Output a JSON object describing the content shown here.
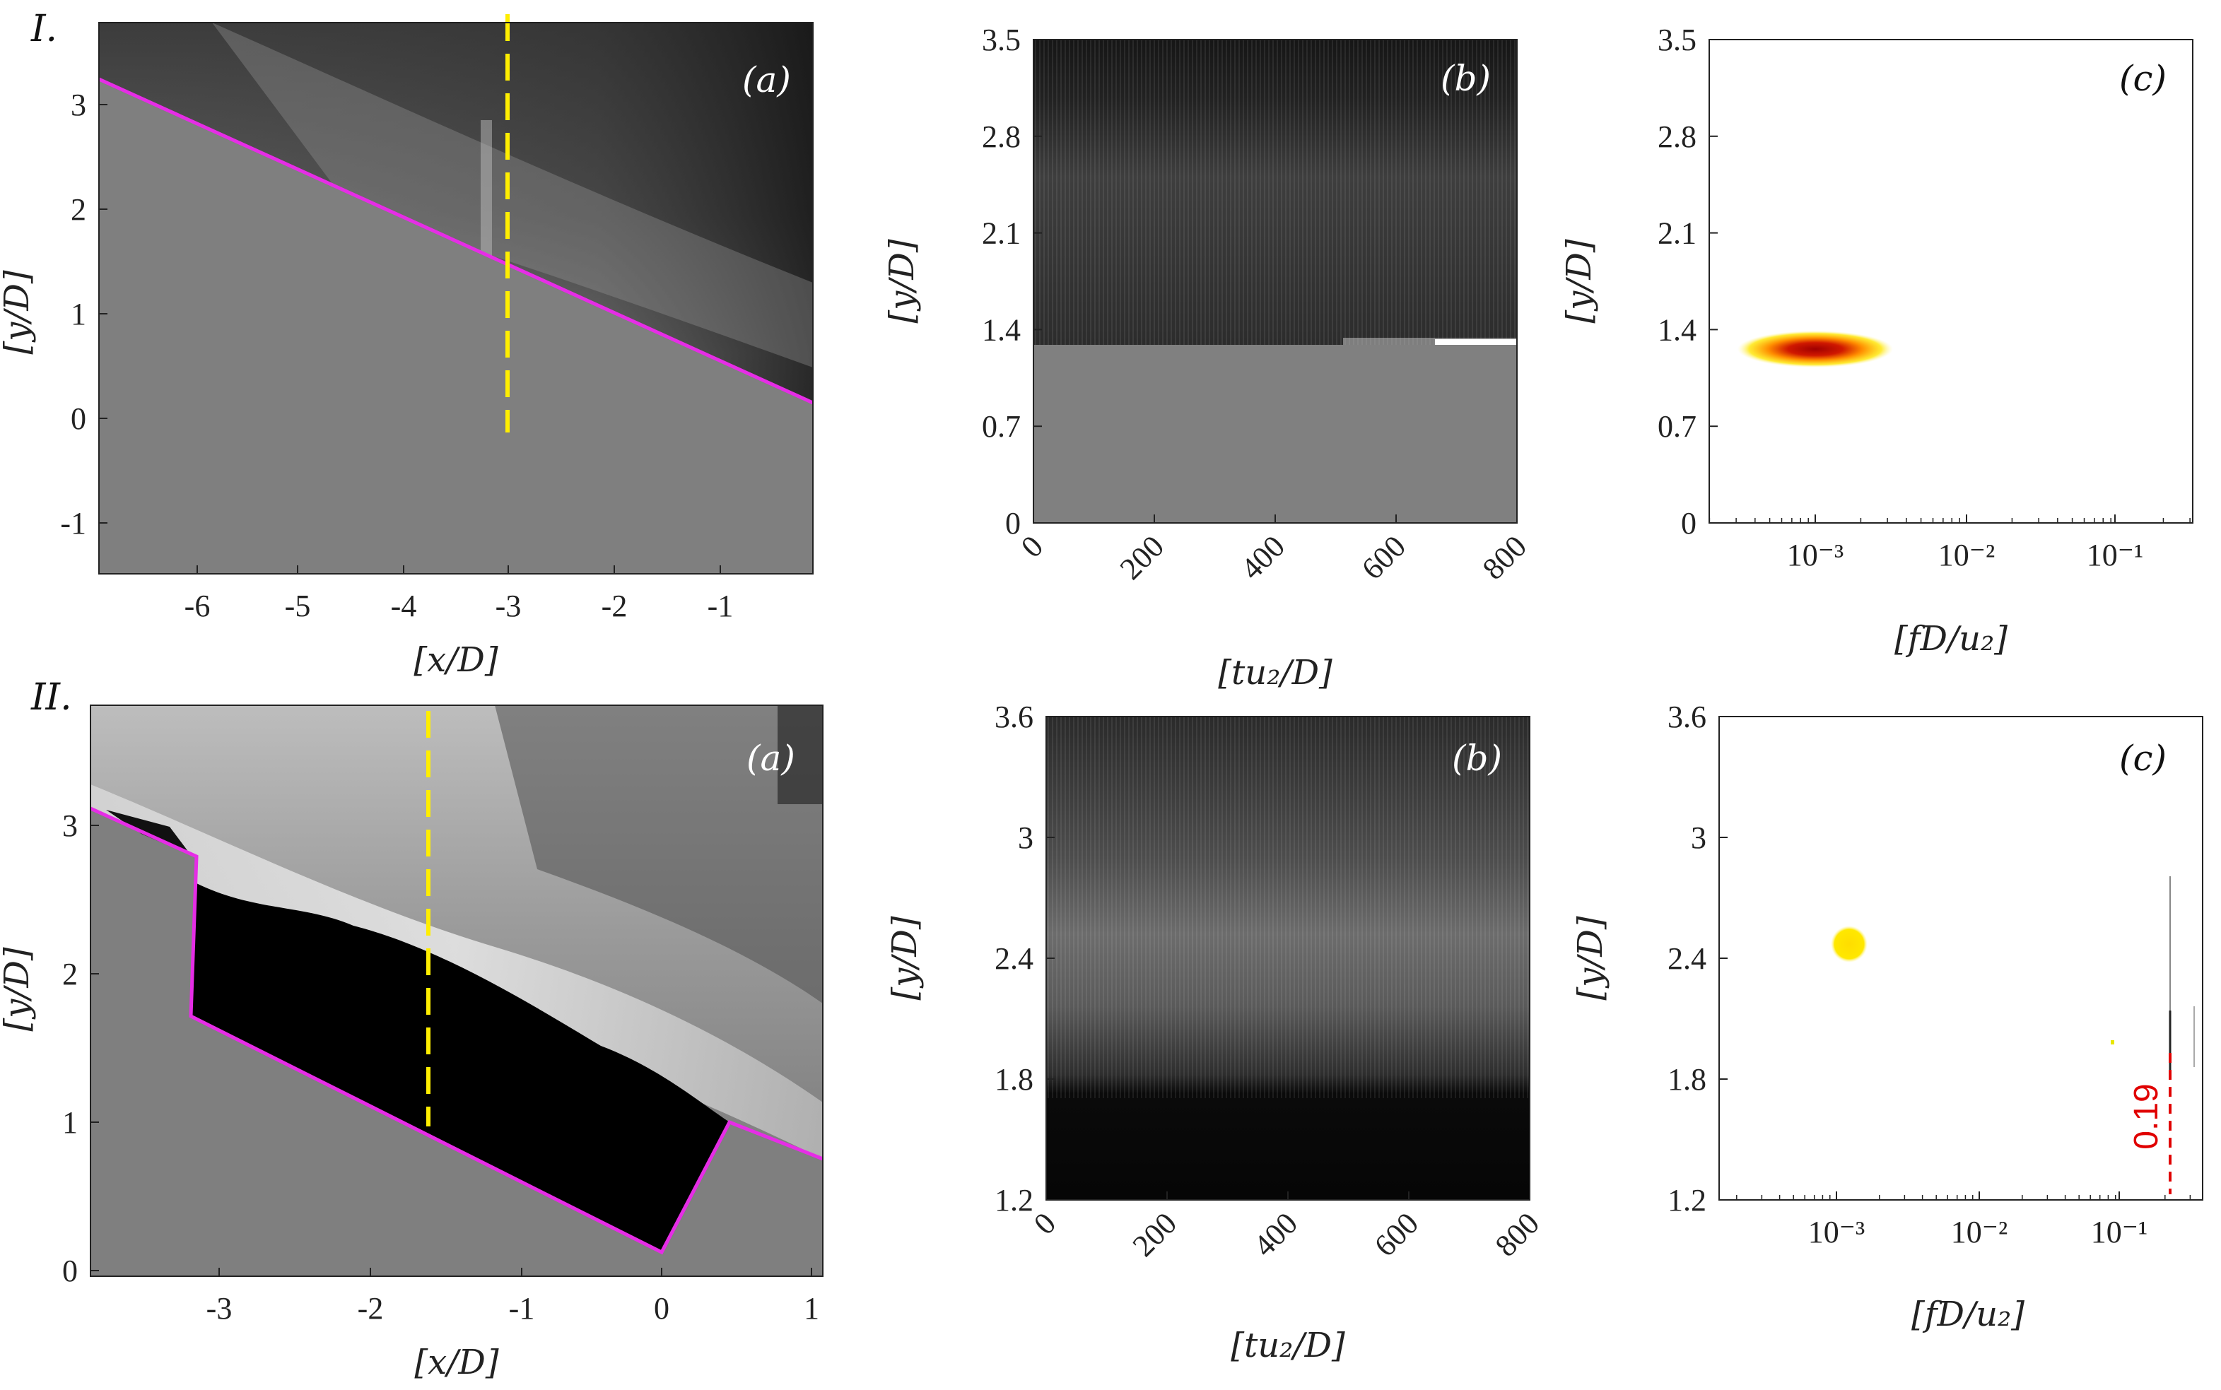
{
  "rows": [
    {
      "label": "I.",
      "a": {
        "panel": "(a)",
        "xlabel": "[x/D]",
        "ylabel": "[y/D]",
        "x_ticks": [
          "-6",
          "-5",
          "-4",
          "-3",
          "-2",
          "-1"
        ],
        "y_ticks": [
          "-1",
          "0",
          "1",
          "2",
          "3"
        ]
      },
      "b": {
        "panel": "(b)",
        "xlabel": "[tu₂/D]",
        "ylabel": "[y/D]",
        "x_ticks": [
          "0",
          "200",
          "400",
          "600",
          "800"
        ],
        "y_ticks": [
          "0",
          "0.7",
          "1.4",
          "2.1",
          "2.8",
          "3.5"
        ]
      },
      "c": {
        "panel": "(c)",
        "xlabel": "[fD/u₂]",
        "ylabel": "[y/D]",
        "x_ticks": [
          "10⁻³",
          "10⁻²",
          "10⁻¹"
        ],
        "y_ticks": [
          "0",
          "0.7",
          "1.4",
          "2.1",
          "2.8",
          "3.5"
        ]
      }
    },
    {
      "label": "II.",
      "a": {
        "panel": "(a)",
        "xlabel": "[x/D]",
        "ylabel": "[y/D]",
        "x_ticks": [
          "-3",
          "-2",
          "-1",
          "0",
          "1"
        ],
        "y_ticks": [
          "0",
          "1",
          "2",
          "3"
        ]
      },
      "b": {
        "panel": "(b)",
        "xlabel": "[tu₂/D]",
        "ylabel": "[y/D]",
        "x_ticks": [
          "0",
          "200",
          "400",
          "600",
          "800"
        ],
        "y_ticks": [
          "1.2",
          "1.8",
          "2.4",
          "3",
          "3.6"
        ]
      },
      "c": {
        "panel": "(c)",
        "xlabel": "[fD/u₂]",
        "ylabel": "[y/D]",
        "x_ticks": [
          "10⁻³",
          "10⁻²",
          "10⁻¹"
        ],
        "y_ticks": [
          "1.2",
          "1.8",
          "2.4",
          "3",
          "3.6"
        ],
        "annotation": "0.19"
      }
    }
  ],
  "colors": {
    "boundary": "#e62de6",
    "probe_line": "#ffee00",
    "peak_core": "#b00000",
    "peak_halo": "#ffe600",
    "annotation": "#e00000"
  }
}
